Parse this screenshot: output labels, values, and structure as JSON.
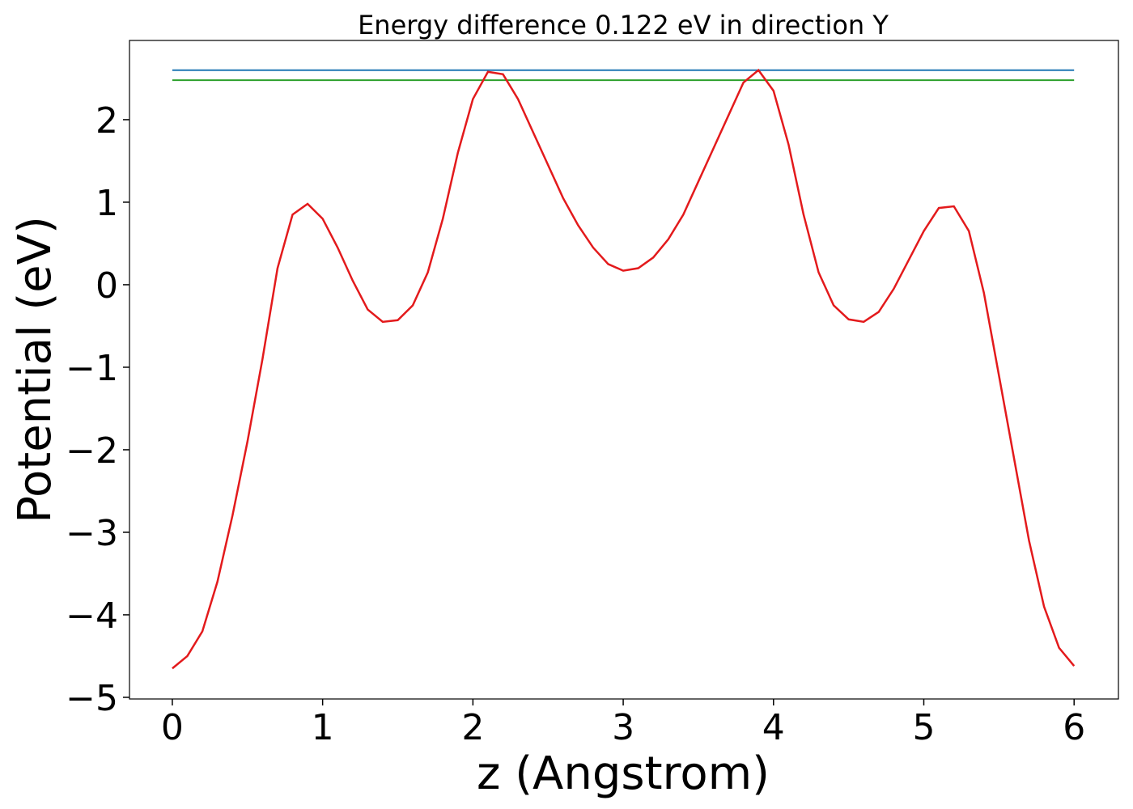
{
  "chart_data": {
    "type": "line",
    "title": "Energy difference 0.122 eV in direction Y",
    "xlabel": "z (Angstrom)",
    "ylabel": "Potential (eV)",
    "xlim": [
      -0.285,
      6.295
    ],
    "ylim": [
      -5.02,
      2.96
    ],
    "xticks": [
      0,
      1,
      2,
      3,
      4,
      5,
      6
    ],
    "yticks": [
      {
        "value": -5,
        "label": "−5"
      },
      {
        "value": -4,
        "label": "−4"
      },
      {
        "value": -3,
        "label": "−3"
      },
      {
        "value": -2,
        "label": "−2"
      },
      {
        "value": -1,
        "label": "−1"
      },
      0,
      1,
      2
    ],
    "grid": false,
    "series": [
      {
        "color": "#1f77b4",
        "x": [
          0,
          6
        ],
        "values": [
          2.6,
          2.6
        ]
      },
      {
        "color": "#2ca02c",
        "x": [
          0,
          6
        ],
        "values": [
          2.478,
          2.478
        ]
      },
      {
        "color": "#e31a1c",
        "x": [
          0,
          0.1,
          0.2,
          0.3,
          0.4,
          0.5,
          0.6,
          0.7,
          0.8,
          0.9,
          1.0,
          1.1,
          1.2,
          1.3,
          1.4,
          1.5,
          1.6,
          1.7,
          1.8,
          1.9,
          2.0,
          2.1,
          2.2,
          2.3,
          2.4,
          2.5,
          2.6,
          2.7,
          2.8,
          2.9,
          3.0,
          3.1,
          3.2,
          3.3,
          3.4,
          3.5,
          3.6,
          3.7,
          3.8,
          3.9,
          4.0,
          4.1,
          4.2,
          4.3,
          4.4,
          4.5,
          4.6,
          4.7,
          4.8,
          4.9,
          5.0,
          5.1,
          5.2,
          5.3,
          5.4,
          5.5,
          5.6,
          5.7,
          5.8,
          5.9,
          6.0
        ],
        "values": [
          -4.65,
          -4.5,
          -4.2,
          -3.6,
          -2.8,
          -1.9,
          -0.9,
          0.2,
          0.85,
          0.98,
          0.8,
          0.45,
          0.05,
          -0.3,
          -0.45,
          -0.43,
          -0.25,
          0.15,
          0.8,
          1.6,
          2.25,
          2.58,
          2.55,
          2.25,
          1.85,
          1.45,
          1.05,
          0.72,
          0.45,
          0.25,
          0.17,
          0.2,
          0.33,
          0.55,
          0.85,
          1.25,
          1.65,
          2.05,
          2.45,
          2.6,
          2.35,
          1.7,
          0.85,
          0.15,
          -0.25,
          -0.42,
          -0.45,
          -0.33,
          -0.05,
          0.3,
          0.65,
          0.93,
          0.95,
          0.65,
          -0.1,
          -1.1,
          -2.1,
          -3.1,
          -3.9,
          -4.4,
          -4.62
        ]
      }
    ]
  }
}
